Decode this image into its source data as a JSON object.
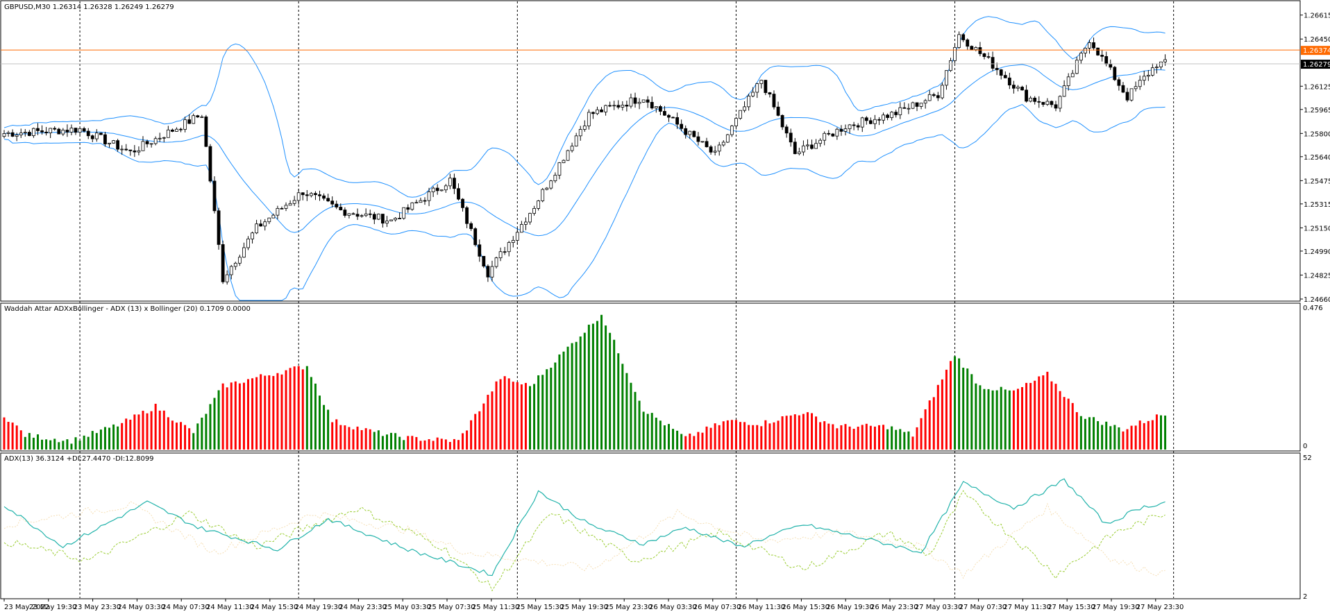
{
  "main": {
    "header": "GBPUSD,M30  1.26314 1.26328 1.26249 1.26279",
    "price_ticks": [
      "1.26615",
      "1.26450",
      "1.26125",
      "1.25965",
      "1.25800",
      "1.25640",
      "1.25475",
      "1.25315",
      "1.25150",
      "1.24990",
      "1.24825",
      "1.24660"
    ],
    "price_range": [
      1.2466,
      1.2669
    ],
    "ask_line": {
      "value": 1.26374,
      "label": "1.26374",
      "color": "#ff6a00"
    },
    "bid_line": {
      "value": 1.26279,
      "label": "1.26279",
      "color": "#000000"
    }
  },
  "wae": {
    "header": "Waddah Attar ADXxBollinger - ADX (13) x Bollinger (20) 0.1709 0.0000",
    "max_label": "0.476",
    "zero_label": "0",
    "max": 0.476
  },
  "adx": {
    "header": "ADX(13) 36.3124 +DI:27.4470 -DI:12.8099",
    "top_label": "52",
    "bottom_label": "2",
    "range": [
      2,
      52
    ]
  },
  "time_axis": [
    "23 May 2022",
    "23 May 19:30",
    "23 May 23:30",
    "24 May 03:30",
    "24 May 07:30",
    "24 May 11:30",
    "24 May 15:30",
    "24 May 19:30",
    "24 May 23:30",
    "25 May 03:30",
    "25 May 07:30",
    "25 May 11:30",
    "25 May 15:30",
    "25 May 19:30",
    "25 May 23:30",
    "26 May 03:30",
    "26 May 07:30",
    "26 May 11:30",
    "26 May 15:30",
    "26 May 19:30",
    "26 May 23:30",
    "27 May 03:30",
    "27 May 07:30",
    "27 May 11:30",
    "27 May 15:30",
    "27 May 19:30",
    "27 May 23:30"
  ],
  "colors": {
    "band": "#1e90ff",
    "candle_up": "#ffffff",
    "candle_down": "#000000",
    "wae_green": "#008000",
    "wae_red": "#ff0000",
    "adx_line": "#20b2aa",
    "plus_di": "#9acd32",
    "minus_di": "#f5deb3",
    "grid": "#000000"
  },
  "chart_data": {
    "type": "candlestick",
    "symbol": "GBPUSD",
    "timeframe": "M30",
    "key_points": [
      {
        "i": 0,
        "p": 1.258
      },
      {
        "i": 18,
        "p": 1.2583
      },
      {
        "i": 30,
        "p": 1.2567
      },
      {
        "i": 47,
        "p": 1.2593
      },
      {
        "i": 52,
        "p": 1.248
      },
      {
        "i": 60,
        "p": 1.2515
      },
      {
        "i": 71,
        "p": 1.254
      },
      {
        "i": 80,
        "p": 1.2527
      },
      {
        "i": 92,
        "p": 1.252
      },
      {
        "i": 106,
        "p": 1.2548
      },
      {
        "i": 115,
        "p": 1.2484
      },
      {
        "i": 126,
        "p": 1.253
      },
      {
        "i": 139,
        "p": 1.2593
      },
      {
        "i": 152,
        "p": 1.2605
      },
      {
        "i": 169,
        "p": 1.2565
      },
      {
        "i": 180,
        "p": 1.2617
      },
      {
        "i": 188,
        "p": 1.2566
      },
      {
        "i": 200,
        "p": 1.2585
      },
      {
        "i": 212,
        "p": 1.2594
      },
      {
        "i": 222,
        "p": 1.2607
      },
      {
        "i": 227,
        "p": 1.2648
      },
      {
        "i": 234,
        "p": 1.263
      },
      {
        "i": 243,
        "p": 1.2605
      },
      {
        "i": 250,
        "p": 1.2599
      },
      {
        "i": 258,
        "p": 1.2645
      },
      {
        "i": 267,
        "p": 1.2605
      },
      {
        "i": 274,
        "p": 1.2628
      }
    ],
    "wae_key_points": [
      {
        "i": 0,
        "v": 0.12,
        "c": "r"
      },
      {
        "i": 5,
        "v": 0.05,
        "c": "g"
      },
      {
        "i": 16,
        "v": 0.03,
        "c": "g"
      },
      {
        "i": 28,
        "v": 0.09,
        "c": "r"
      },
      {
        "i": 36,
        "v": 0.15,
        "c": "r"
      },
      {
        "i": 45,
        "v": 0.06,
        "c": "g"
      },
      {
        "i": 52,
        "v": 0.22,
        "c": "r"
      },
      {
        "i": 60,
        "v": 0.25,
        "c": "r"
      },
      {
        "i": 72,
        "v": 0.29,
        "c": "g"
      },
      {
        "i": 78,
        "v": 0.1,
        "c": "r"
      },
      {
        "i": 88,
        "v": 0.06,
        "c": "g"
      },
      {
        "i": 96,
        "v": 0.04,
        "c": "r"
      },
      {
        "i": 108,
        "v": 0.03,
        "c": "r"
      },
      {
        "i": 118,
        "v": 0.25,
        "c": "r"
      },
      {
        "i": 125,
        "v": 0.22,
        "c": "g"
      },
      {
        "i": 142,
        "v": 0.47,
        "c": "g"
      },
      {
        "i": 152,
        "v": 0.14,
        "c": "g"
      },
      {
        "i": 162,
        "v": 0.04,
        "c": "r"
      },
      {
        "i": 172,
        "v": 0.1,
        "c": "r"
      },
      {
        "i": 180,
        "v": 0.09,
        "c": "r"
      },
      {
        "i": 190,
        "v": 0.13,
        "c": "r"
      },
      {
        "i": 198,
        "v": 0.08,
        "c": "r"
      },
      {
        "i": 210,
        "v": 0.08,
        "c": "g"
      },
      {
        "i": 216,
        "v": 0.05,
        "c": "r"
      },
      {
        "i": 226,
        "v": 0.33,
        "c": "g"
      },
      {
        "i": 232,
        "v": 0.22,
        "c": "g"
      },
      {
        "i": 240,
        "v": 0.2,
        "c": "r"
      },
      {
        "i": 248,
        "v": 0.26,
        "c": "r"
      },
      {
        "i": 256,
        "v": 0.12,
        "c": "g"
      },
      {
        "i": 266,
        "v": 0.07,
        "c": "r"
      },
      {
        "i": 275,
        "v": 0.12,
        "c": "g"
      }
    ],
    "adx_key_points": [
      {
        "i": 0,
        "v": 35
      },
      {
        "i": 14,
        "v": 20
      },
      {
        "i": 34,
        "v": 36
      },
      {
        "i": 46,
        "v": 27
      },
      {
        "i": 65,
        "v": 19
      },
      {
        "i": 77,
        "v": 30
      },
      {
        "i": 96,
        "v": 19
      },
      {
        "i": 116,
        "v": 10
      },
      {
        "i": 127,
        "v": 40
      },
      {
        "i": 139,
        "v": 28
      },
      {
        "i": 152,
        "v": 21
      },
      {
        "i": 162,
        "v": 27
      },
      {
        "i": 175,
        "v": 20
      },
      {
        "i": 190,
        "v": 28
      },
      {
        "i": 210,
        "v": 21
      },
      {
        "i": 218,
        "v": 18
      },
      {
        "i": 228,
        "v": 43
      },
      {
        "i": 240,
        "v": 34
      },
      {
        "i": 252,
        "v": 44
      },
      {
        "i": 262,
        "v": 28
      },
      {
        "i": 270,
        "v": 34
      },
      {
        "i": 276,
        "v": 36
      }
    ],
    "plus_di_key_points": [
      {
        "i": 0,
        "v": 22
      },
      {
        "i": 20,
        "v": 15
      },
      {
        "i": 44,
        "v": 32
      },
      {
        "i": 60,
        "v": 20
      },
      {
        "i": 84,
        "v": 34
      },
      {
        "i": 104,
        "v": 20
      },
      {
        "i": 116,
        "v": 5
      },
      {
        "i": 130,
        "v": 32
      },
      {
        "i": 150,
        "v": 15
      },
      {
        "i": 170,
        "v": 25
      },
      {
        "i": 190,
        "v": 12
      },
      {
        "i": 210,
        "v": 25
      },
      {
        "i": 220,
        "v": 17
      },
      {
        "i": 228,
        "v": 39
      },
      {
        "i": 250,
        "v": 10
      },
      {
        "i": 264,
        "v": 25
      },
      {
        "i": 276,
        "v": 32
      }
    ],
    "minus_di_key_points": [
      {
        "i": 0,
        "v": 28
      },
      {
        "i": 30,
        "v": 35
      },
      {
        "i": 50,
        "v": 18
      },
      {
        "i": 74,
        "v": 32
      },
      {
        "i": 96,
        "v": 26
      },
      {
        "i": 110,
        "v": 18
      },
      {
        "i": 140,
        "v": 12
      },
      {
        "i": 160,
        "v": 32
      },
      {
        "i": 180,
        "v": 22
      },
      {
        "i": 200,
        "v": 25
      },
      {
        "i": 218,
        "v": 20
      },
      {
        "i": 228,
        "v": 10
      },
      {
        "i": 248,
        "v": 34
      },
      {
        "i": 264,
        "v": 15
      },
      {
        "i": 276,
        "v": 10
      }
    ]
  }
}
